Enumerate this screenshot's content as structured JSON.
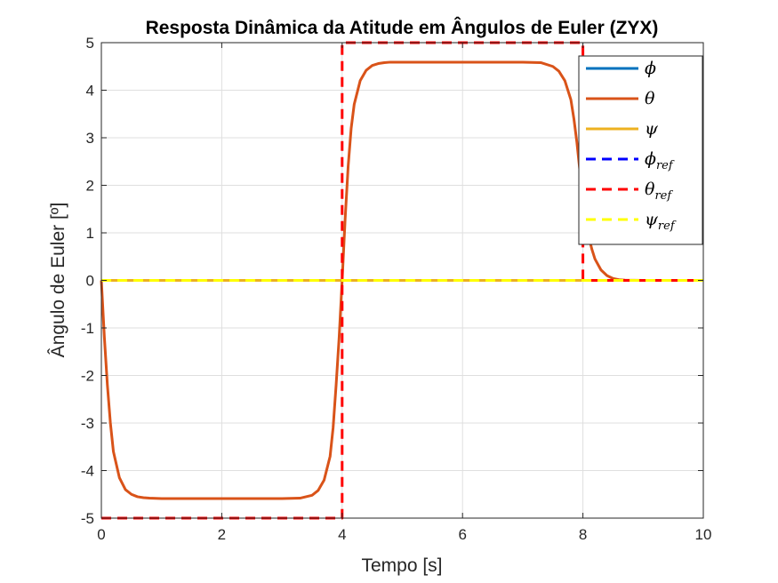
{
  "chart_data": {
    "type": "line",
    "title": "Resposta Dinâmica da Atitude em Ângulos de Euler (ZYX)",
    "xlabel": "Tempo [s]",
    "ylabel": "Ângulo de Euler [º]",
    "xlim": [
      0,
      10
    ],
    "ylim": [
      -5,
      5
    ],
    "xticks": [
      0,
      2,
      4,
      6,
      8,
      10
    ],
    "yticks": [
      -5,
      -4,
      -3,
      -2,
      -1,
      0,
      1,
      2,
      3,
      4,
      5
    ],
    "grid": true,
    "legend_position": "top-right",
    "series": [
      {
        "name": "ϕ",
        "color": "#0072BD",
        "style": "solid",
        "x": [
          0,
          10
        ],
        "y": [
          0,
          0
        ]
      },
      {
        "name": "θ",
        "color": "#D95319",
        "style": "solid",
        "x": [
          0,
          0.05,
          0.1,
          0.15,
          0.2,
          0.3,
          0.4,
          0.5,
          0.6,
          0.7,
          0.8,
          1.0,
          1.5,
          2.0,
          3.0,
          3.3,
          3.5,
          3.6,
          3.7,
          3.8,
          3.85,
          3.9,
          3.95,
          4.0,
          4.05,
          4.1,
          4.15,
          4.2,
          4.3,
          4.4,
          4.5,
          4.6,
          4.7,
          4.8,
          5.0,
          5.5,
          6.0,
          7.0,
          7.3,
          7.5,
          7.6,
          7.7,
          7.8,
          7.85,
          7.9,
          7.95,
          8.0,
          8.05,
          8.1,
          8.15,
          8.2,
          8.3,
          8.4,
          8.5,
          8.6,
          8.7,
          9.0,
          10.0
        ],
        "y": [
          0,
          -1.2,
          -2.2,
          -3.0,
          -3.6,
          -4.15,
          -4.4,
          -4.5,
          -4.55,
          -4.57,
          -4.58,
          -4.59,
          -4.59,
          -4.59,
          -4.59,
          -4.58,
          -4.52,
          -4.42,
          -4.2,
          -3.7,
          -3.1,
          -2.2,
          -1.2,
          0.0,
          1.3,
          2.4,
          3.2,
          3.7,
          4.2,
          4.42,
          4.52,
          4.56,
          4.58,
          4.59,
          4.59,
          4.59,
          4.59,
          4.59,
          4.58,
          4.5,
          4.4,
          4.2,
          3.8,
          3.4,
          2.9,
          2.3,
          1.7,
          1.25,
          0.9,
          0.65,
          0.45,
          0.22,
          0.1,
          0.04,
          0.015,
          0.005,
          0,
          0
        ]
      },
      {
        "name": "ψ",
        "color": "#EDB120",
        "style": "solid",
        "x": [
          0,
          10
        ],
        "y": [
          0,
          0
        ]
      },
      {
        "name": "ϕ",
        "subscript": "ref",
        "color": "#0000FF",
        "style": "dashed",
        "x": [
          0,
          10
        ],
        "y": [
          0,
          0
        ]
      },
      {
        "name": "θ",
        "subscript": "ref",
        "color": "#FF0000",
        "style": "dashed",
        "x": [
          0,
          4,
          4,
          8,
          8,
          10
        ],
        "y": [
          -5,
          -5,
          5,
          5,
          0,
          0
        ]
      },
      {
        "name": "ψ",
        "subscript": "ref",
        "color": "#FFFF00",
        "style": "dashed",
        "x": [
          0,
          10
        ],
        "y": [
          0,
          0
        ]
      }
    ]
  }
}
